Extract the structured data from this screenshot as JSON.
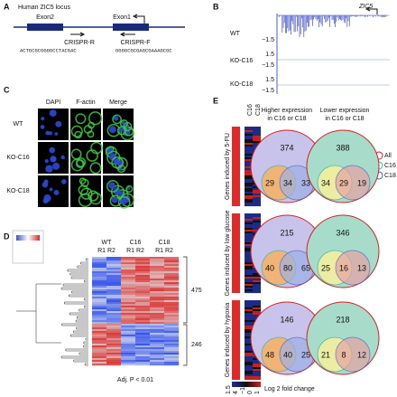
{
  "A": {
    "label": "A",
    "title": "Human ZIC5 locus",
    "exon2": "Exon2",
    "exon1": "Exon1",
    "primer_r": "CRISPR-R",
    "primer_f": "CRISPR-F",
    "seq_r": "ACTGCGCGGGGCCTACGAC",
    "seq_f": "GGGGCGCGAGCGAAAGCGC"
  },
  "B": {
    "label": "B",
    "gene": "ZIC5",
    "tracks": [
      "WT",
      "KO-C16",
      "KO-C18"
    ],
    "tick_labels": [
      "−1.5",
      "1.5",
      "−1.5",
      "1.5",
      "−1.5"
    ]
  },
  "C": {
    "label": "C",
    "columns": [
      "DAPI",
      "F-actin",
      "Merge"
    ],
    "rows": [
      "WT",
      "KO-C16",
      "KO-C18"
    ]
  },
  "D": {
    "label": "D",
    "columns": [
      "WT",
      "C16",
      "C18"
    ],
    "replicates": "R1 R2",
    "clusters": [
      475,
      246
    ],
    "footnote": "Adj. P < 0.01"
  },
  "E": {
    "label": "E",
    "columns": [
      "C16",
      "C18"
    ],
    "higher_header": [
      "Higher expression",
      "in C16 or C18"
    ],
    "lower_header": [
      "Lower expression",
      "in C16 or C18"
    ],
    "legend": [
      "All",
      "C16",
      "C18"
    ],
    "rows": [
      {
        "label": "Genes induced by 5-FU",
        "higher": [
          374,
          29,
          34,
          33
        ],
        "lower": [
          388,
          34,
          29,
          19
        ]
      },
      {
        "label": "Genes induced by low glucose",
        "higher": [
          215,
          40,
          80,
          65
        ],
        "lower": [
          346,
          25,
          16,
          13
        ]
      },
      {
        "label": "Genes induced by hypoxia",
        "higher": [
          146,
          48,
          40,
          25
        ],
        "lower": [
          218,
          21,
          8,
          12
        ]
      }
    ],
    "colorbar_ticks": [
      "1.5",
      "4",
      "−1",
      "0",
      "1"
    ],
    "colorbar_label": "Log 2 fold change"
  }
}
